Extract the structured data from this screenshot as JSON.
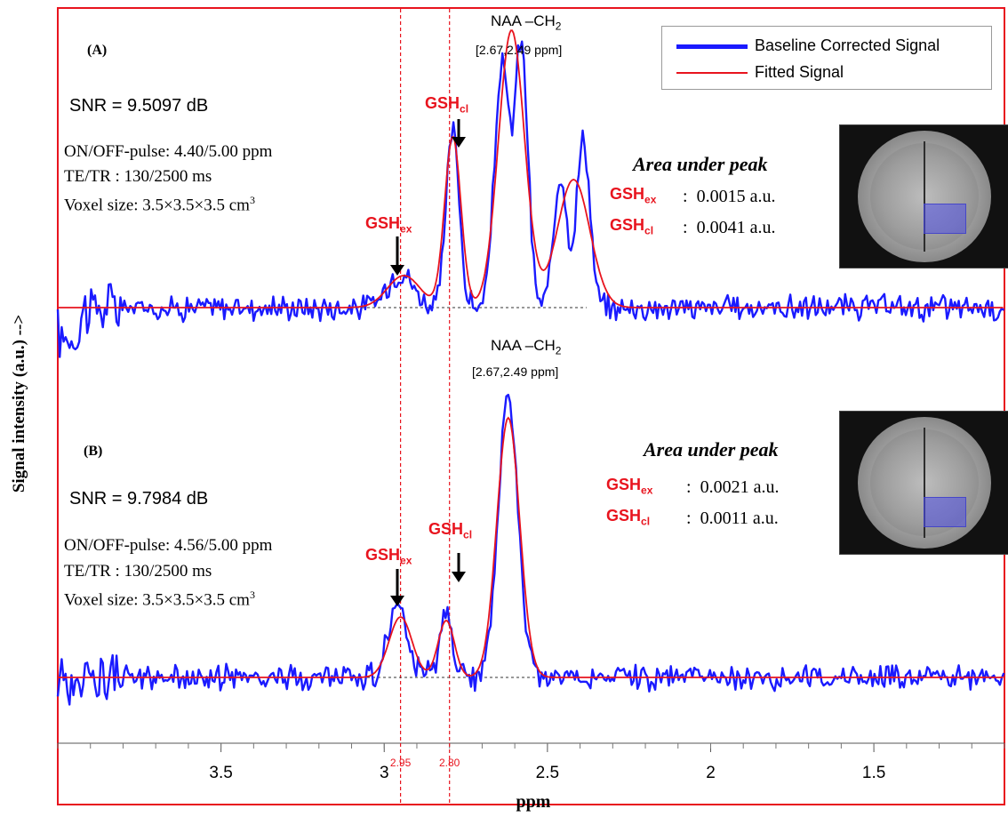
{
  "chart_data": {
    "type": "line",
    "xlabel": "ppm",
    "ylabel": "Signal intensity (a.u.)   -->",
    "xlim": [
      4.0,
      1.1
    ],
    "x_reversed": true,
    "x_ticks": [
      3.5,
      3,
      2.5,
      2,
      1.5
    ],
    "x_tick_labels": [
      "3.5",
      "3",
      "2.5",
      "2",
      "1.5"
    ],
    "reference_lines": [
      {
        "x": 2.95,
        "label": "2.95",
        "color": "#e8141e"
      },
      {
        "x": 2.8,
        "label": "2.80",
        "color": "#e8141e"
      }
    ],
    "legend": {
      "placement": "top-right",
      "entries": [
        {
          "name": "Baseline Corrected Signal",
          "color": "#1a1aff"
        },
        {
          "name": "Fitted Signal",
          "color": "#e8141e"
        }
      ]
    },
    "panels": [
      {
        "id": "A",
        "label": "(A)",
        "snr": "SNR = 9.5097 dB",
        "params": [
          "ON/OFF-pulse: 4.40/5.00 ppm",
          "TE/TR : 130/2500 ms",
          "Voxel size: 3.5×3.5×3.5 cm"
        ],
        "voxel_exp": "3",
        "naa_label": "NAA –CH",
        "naa_sub": "2",
        "naa_range": "[2.67,2.49 ppm]",
        "gsh_ex_label": "GSH",
        "gsh_ex_sub": "ex",
        "gsh_cl_label": "GSH",
        "gsh_cl_sub": "cl",
        "area_title": "Area under peak",
        "area_rows": [
          {
            "name": "GSH",
            "sub": "ex",
            "value": "0.0015 a.u."
          },
          {
            "name": "GSH",
            "sub": "cl",
            "value": "0.0041 a.u."
          }
        ],
        "fitted_peaks": [
          {
            "center": 2.94,
            "amplitude": 0.09,
            "width": 0.05
          },
          {
            "center": 2.79,
            "amplitude": 0.48,
            "width": 0.025
          },
          {
            "center": 2.61,
            "amplitude": 0.78,
            "width": 0.04
          },
          {
            "center": 2.42,
            "amplitude": 0.36,
            "width": 0.05
          }
        ],
        "measured_peaks": [
          {
            "center": 2.95,
            "amplitude": 0.1,
            "width": 0.04
          },
          {
            "center": 2.79,
            "amplitude": 0.5,
            "width": 0.02
          },
          {
            "center": 2.64,
            "amplitude": 0.68,
            "width": 0.022
          },
          {
            "center": 2.58,
            "amplitude": 0.74,
            "width": 0.02
          },
          {
            "center": 2.46,
            "amplitude": 0.38,
            "width": 0.02
          },
          {
            "center": 2.39,
            "amplitude": 0.48,
            "width": 0.02
          }
        ]
      },
      {
        "id": "B",
        "label": "(B)",
        "snr": "SNR = 9.7984 dB",
        "params": [
          "ON/OFF-pulse: 4.56/5.00 ppm",
          "TE/TR : 130/2500 ms",
          "Voxel size: 3.5×3.5×3.5 cm"
        ],
        "voxel_exp": "3",
        "naa_label": "NAA –CH",
        "naa_sub": "2",
        "naa_range": "[2.67,2.49 ppm]",
        "gsh_ex_label": "GSH",
        "gsh_ex_sub": "ex",
        "gsh_cl_label": "GSH",
        "gsh_cl_sub": "cl",
        "area_title": "Area under peak",
        "area_rows": [
          {
            "name": "GSH",
            "sub": "ex",
            "value": "0.0021 a.u."
          },
          {
            "name": "GSH",
            "sub": "cl",
            "value": "0.0011 a.u."
          }
        ],
        "fitted_peaks": [
          {
            "center": 2.95,
            "amplitude": 0.17,
            "width": 0.035
          },
          {
            "center": 2.81,
            "amplitude": 0.16,
            "width": 0.025
          },
          {
            "center": 2.62,
            "amplitude": 0.73,
            "width": 0.035
          }
        ],
        "measured_peaks": [
          {
            "center": 2.96,
            "amplitude": 0.19,
            "width": 0.03
          },
          {
            "center": 2.81,
            "amplitude": 0.17,
            "width": 0.02
          },
          {
            "center": 2.62,
            "amplitude": 0.8,
            "width": 0.03
          }
        ]
      }
    ]
  }
}
